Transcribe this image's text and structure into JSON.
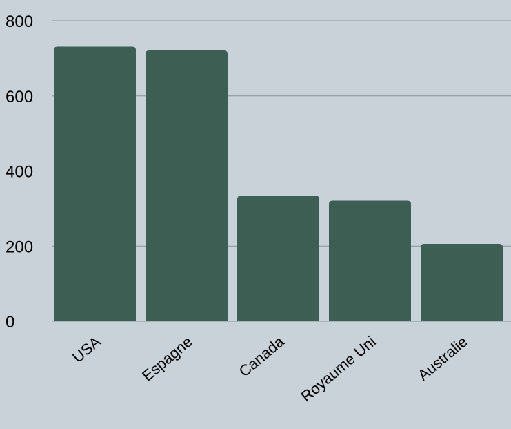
{
  "chart_data": {
    "type": "bar",
    "categories": [
      "USA",
      "Espagne",
      "Canada",
      "Royaume Uni",
      "Australie"
    ],
    "values": [
      731,
      721,
      334,
      321,
      206
    ],
    "y_ticks": [
      "0",
      "200",
      "400",
      "600",
      "800"
    ],
    "ylim": [
      0,
      800
    ],
    "grid": true,
    "legend": "none",
    "title": "",
    "xlabel": "",
    "ylabel": ""
  },
  "colors": {
    "background": "#c9d1d9",
    "bar": "#3d5e53",
    "grid": "#8a9199"
  }
}
